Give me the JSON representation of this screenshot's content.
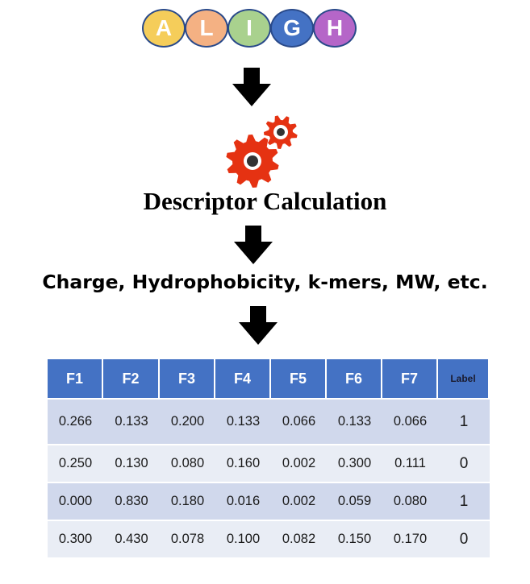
{
  "peptide": {
    "letters": [
      "A",
      "L",
      "I",
      "G",
      "H"
    ],
    "colors": [
      "#f5cd5a",
      "#f4b183",
      "#a9d18e",
      "#4472c4",
      "#b566c8"
    ]
  },
  "step_title": "Descriptor Calculation",
  "features_text": "Charge, Hydrophobicity, k-mers,  MW, etc.",
  "icons": {
    "arrow": "down-arrow-icon",
    "gears": "gears-icon"
  },
  "colors": {
    "gear": "#e53212",
    "header": "#4472c4",
    "row_dark": "#d0d8ec",
    "row_light": "#e9edf5"
  },
  "table": {
    "headers": [
      "F1",
      "F2",
      "F3",
      "F4",
      "F5",
      "F6",
      "F7",
      "Label"
    ],
    "rows": [
      [
        "0.266",
        "0.133",
        "0.200",
        "0.133",
        "0.066",
        "0.133",
        "0.066",
        "1"
      ],
      [
        "0.250",
        "0.130",
        "0.080",
        "0.160",
        "0.002",
        "0.300",
        "0.111",
        "0"
      ],
      [
        "0.000",
        "0.830",
        "0.180",
        "0.016",
        "0.002",
        "0.059",
        "0.080",
        "1"
      ],
      [
        "0.300",
        "0.430",
        "0.078",
        "0.100",
        "0.082",
        "0.150",
        "0.170",
        "0"
      ]
    ]
  }
}
